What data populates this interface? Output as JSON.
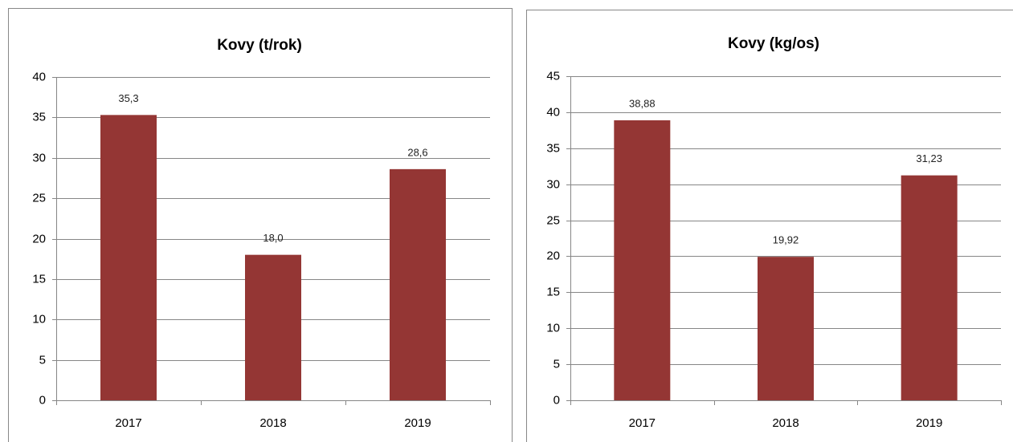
{
  "chart_data": [
    {
      "type": "bar",
      "title": "Kovy (t/rok)",
      "categories": [
        "2017",
        "2018",
        "2019"
      ],
      "values": [
        35.3,
        18.0,
        28.6
      ],
      "value_labels": [
        "35,3",
        "18,0",
        "28,6"
      ],
      "color": "#943634",
      "ylim": [
        0,
        40
      ],
      "yticks": [
        0,
        5,
        10,
        15,
        20,
        25,
        30,
        35,
        40
      ],
      "grid": true
    },
    {
      "type": "bar",
      "title": "Kovy (kg/os)",
      "categories": [
        "2017",
        "2018",
        "2019"
      ],
      "values": [
        38.88,
        19.92,
        31.23
      ],
      "value_labels": [
        "38,88",
        "19,92",
        "31,23"
      ],
      "color": "#943634",
      "ylim": [
        0,
        45
      ],
      "yticks": [
        0,
        5,
        10,
        15,
        20,
        25,
        30,
        35,
        40,
        45
      ],
      "grid": true
    }
  ]
}
